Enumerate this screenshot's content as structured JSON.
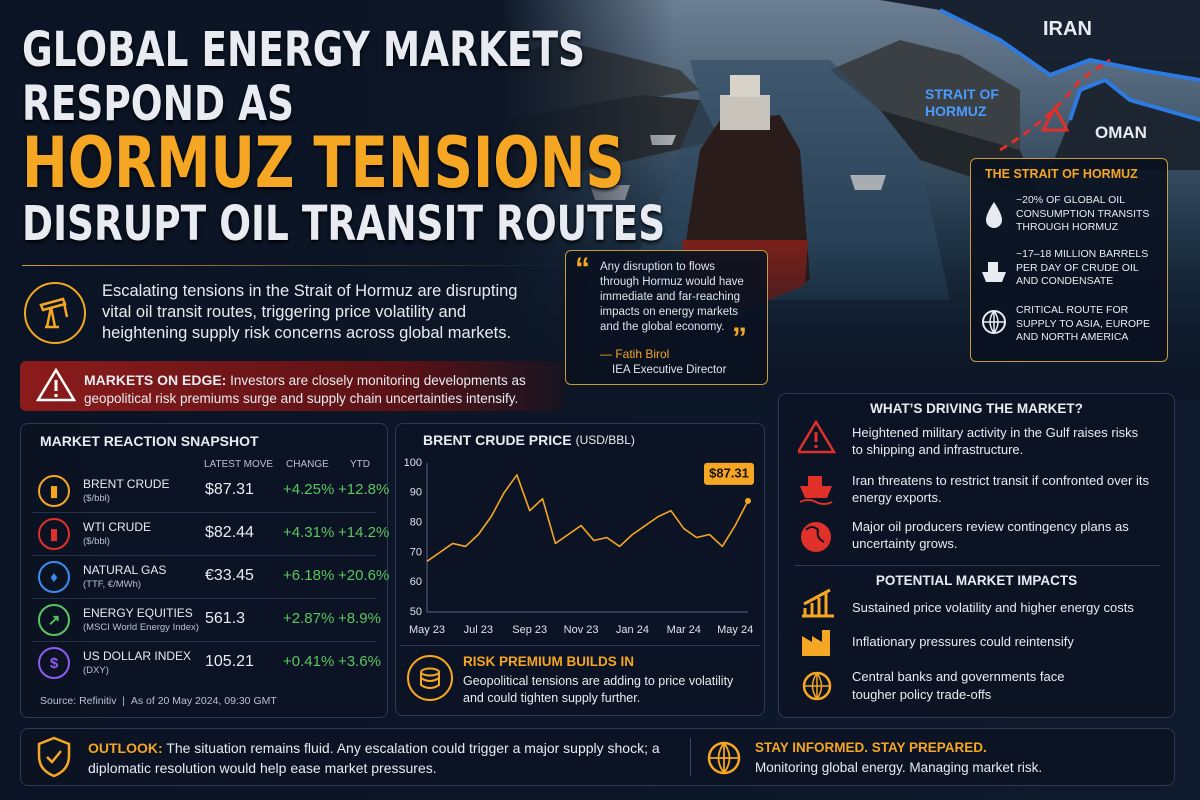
{
  "header": {
    "line1": "GLOBAL ENERGY MARKETS",
    "line2": "RESPOND AS",
    "highlight": "HORMUZ TENSIONS",
    "line4": "DISRUPT OIL TRANSIT ROUTES"
  },
  "intro": "Escalating tensions in the Strait of Hormuz are disrupting vital oil transit routes, triggering price volatility and heightening supply risk concerns across global markets.",
  "alert": {
    "label": "MARKETS ON EDGE:",
    "text": "Investors are closely monitoring developments as geopolitical risk premiums surge and supply chain uncertainties intensify."
  },
  "quote": {
    "text": "Any disruption to flows through Hormuz would have immediate and far-reaching impacts on energy markets and the global economy.",
    "author": "— Fatih Birol",
    "role": "IEA Executive Director"
  },
  "map": {
    "iran": "IRAN",
    "strait": "STRAIT OF HORMUZ",
    "oman": "OMAN"
  },
  "strait_box": {
    "title": "THE STRAIT OF HORMUZ",
    "items": [
      "~20% OF GLOBAL OIL CONSUMPTION TRANSITS THROUGH HORMUZ",
      "~17–18 MILLION BARRELS PER DAY OF CRUDE OIL AND CONDENSATE",
      "CRITICAL ROUTE FOR SUPPLY TO ASIA, EUROPE AND NORTH AMERICA"
    ]
  },
  "snapshot": {
    "title": "MARKET REACTION SNAPSHOT",
    "columns": [
      "LATEST MOVE",
      "CHANGE",
      "YTD"
    ],
    "rows": [
      {
        "name": "BRENT CRUDE",
        "unit": "($/bbl)",
        "latest": "$87.31",
        "change": "+4.25%",
        "ytd": "+12.8%"
      },
      {
        "name": "WTI CRUDE",
        "unit": "($/bbl)",
        "latest": "$82.44",
        "change": "+4.31%",
        "ytd": "+14.2%"
      },
      {
        "name": "NATURAL GAS",
        "unit": "(TTF, €/MWh)",
        "latest": "€33.45",
        "change": "+6.18%",
        "ytd": "+20.6%"
      },
      {
        "name": "ENERGY EQUITIES",
        "unit": "(MSCI World Energy Index)",
        "latest": "561.3",
        "change": "+2.87%",
        "ytd": "+8.9%"
      },
      {
        "name": "US DOLLAR INDEX",
        "unit": "(DXY)",
        "latest": "105.21",
        "change": "+0.41%",
        "ytd": "+3.6%"
      }
    ],
    "source": "Source: Refinitiv",
    "as_of": "As of 20 May 2024, 09:30 GMT"
  },
  "chart_data": {
    "type": "line",
    "title": "BRENT CRUDE PRICE",
    "unit": "(USD/BBL)",
    "categories": [
      "May 23",
      null,
      null,
      null,
      "Jul 23",
      null,
      null,
      null,
      "Sep 23",
      null,
      null,
      null,
      "Nov 23",
      null,
      null,
      null,
      "Jan 24",
      null,
      null,
      null,
      "Mar 24",
      null,
      null,
      null,
      "May 24",
      null
    ],
    "values": [
      67,
      70,
      73,
      72,
      76,
      82,
      90,
      96,
      84,
      88,
      73,
      76,
      79,
      74,
      75,
      72,
      76,
      79,
      82,
      84,
      78,
      75,
      76,
      72,
      79,
      87.31
    ],
    "value_labels": [
      null,
      null,
      null,
      null,
      null,
      null,
      null,
      null,
      null,
      null,
      null,
      null,
      null,
      null,
      null,
      null,
      null,
      null,
      null,
      null,
      null,
      null,
      null,
      null,
      null,
      "$87.31"
    ],
    "color": "#f5a623",
    "ylim": [
      50,
      100
    ],
    "yticks": [
      50,
      60,
      70,
      80,
      90,
      100
    ],
    "grid": false
  },
  "risk": {
    "title": "RISK PREMIUM BUILDS IN",
    "text": "Geopolitical tensions are adding to price volatility and could tighten supply further."
  },
  "drivers": {
    "title": "WHAT’S DRIVING THE MARKET?",
    "items": [
      "Heightened military activity in the Gulf raises risks to shipping and infrastructure.",
      "Iran threatens to restrict transit if confronted over its energy exports.",
      "Major oil producers review contingency plans as uncertainty grows."
    ]
  },
  "impacts": {
    "title": "POTENTIAL MARKET IMPACTS",
    "items": [
      "Sustained price volatility and higher energy costs",
      "Inflationary pressures could reintensify",
      "Central banks and governments face tougher policy trade-offs"
    ]
  },
  "outlook": {
    "label": "OUTLOOK:",
    "text": "The situation remains fluid. Any escalation could trigger a major supply shock; a diplomatic resolution would help ease market pressures."
  },
  "footer": {
    "title": "STAY INFORMED. STAY PREPARED.",
    "text": "Monitoring global energy. Managing market risk."
  }
}
